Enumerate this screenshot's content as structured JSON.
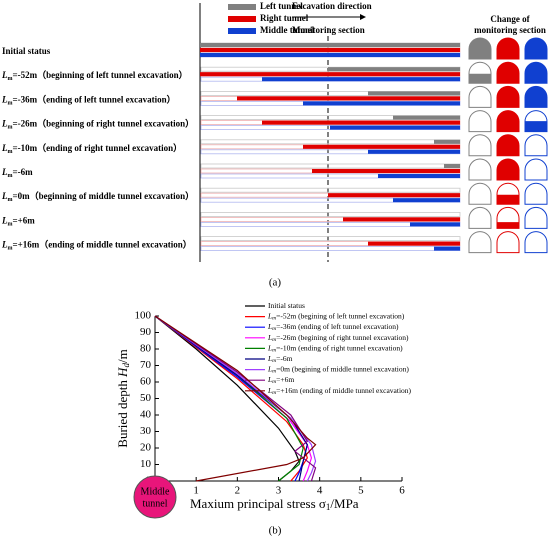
{
  "figure_a": {
    "legend": [
      "Left tunnel",
      "Right tunnel",
      "Middle tunnel"
    ],
    "direction_label": "Excavation direction",
    "section_label": "Monitoring section",
    "change_label": [
      "Change of",
      "monitoring section"
    ],
    "stages": [
      {
        "text": "Initial status"
      },
      {
        "symbol": "L",
        "subscript": "m",
        "text": "=-52m（beginning of left tunnel excavation）"
      },
      {
        "symbol": "L",
        "subscript": "m",
        "text": "=-36m（ending of left tunnel excavation）"
      },
      {
        "symbol": "L",
        "subscript": "m",
        "text": "=-26m（beginning of right tunnel excavation）"
      },
      {
        "symbol": "L",
        "subscript": "m",
        "text": "=-10m（ending of right tunnel excavation）"
      },
      {
        "symbol": "L",
        "subscript": "m",
        "text": "=-6m"
      },
      {
        "symbol": "L",
        "subscript": "m",
        "text": "=0m（beginning of middle tunnel excavation）"
      },
      {
        "symbol": "L",
        "subscript": "m",
        "text": "=+6m"
      },
      {
        "symbol": "L",
        "subscript": "m",
        "text": "=+16m（ending of middle tunnel excavation）"
      }
    ],
    "caption": "(a)"
  },
  "chart_data": {
    "type": "line",
    "y_title": {
      "prefix": "Buried depth ",
      "symbol": "H",
      "subscript": "d",
      "suffix": "/m"
    },
    "x_title": {
      "prefix": "Maxium principal stress σ",
      "subscript": "1",
      "suffix": "/MPa"
    },
    "xlim": [
      0,
      6
    ],
    "xticks": [
      0,
      1,
      2,
      3,
      4,
      5,
      6
    ],
    "ylim": [
      0,
      100
    ],
    "yticks": [
      0,
      10,
      20,
      30,
      40,
      50,
      60,
      70,
      80,
      90,
      100
    ],
    "marker_label": [
      "Middle",
      "tunnel"
    ],
    "series": [
      {
        "name": "Initial status",
        "color": "#000000",
        "x": [
          0,
          1,
          2,
          3,
          3.4,
          3.5,
          3.3,
          3.0
        ],
        "values": [
          100,
          80,
          58,
          32,
          18,
          12,
          6,
          0
        ]
      },
      {
        "name_prefix": "L",
        "name_subscript": "m",
        "name": "=-52m (begining of left tunnel excavation)",
        "color": "#ff0000",
        "x": [
          0,
          2,
          3.2,
          3.6,
          3.7,
          3.5,
          3.3
        ],
        "values": [
          100,
          62,
          36,
          22,
          14,
          6,
          0
        ]
      },
      {
        "name_prefix": "L",
        "name_subscript": "m",
        "name": "=-36m (ending of left tunnel excavation)",
        "color": "#0000ff",
        "x": [
          0,
          2,
          3.3,
          3.7,
          3.6,
          3.5,
          3.4
        ],
        "values": [
          100,
          63,
          36,
          22,
          12,
          5,
          0
        ]
      },
      {
        "name_prefix": "L",
        "name_subscript": "m",
        "name": "=-26m (begining of right tunnel excavation)",
        "color": "#ff00ff",
        "x": [
          0,
          2,
          3.3,
          3.7,
          3.8,
          3.7,
          3.6
        ],
        "values": [
          100,
          64,
          36,
          22,
          14,
          6,
          0
        ]
      },
      {
        "name_prefix": "L",
        "name_subscript": "m",
        "name": "=-10m (ending of right tunnel excavation)",
        "color": "#008000",
        "x": [
          0,
          2,
          3.2,
          3.6,
          3.5,
          3.2,
          3.0
        ],
        "values": [
          100,
          64,
          38,
          20,
          10,
          4,
          0
        ]
      },
      {
        "name_prefix": "L",
        "name_subscript": "m",
        "name": "=-6m",
        "color": "#000080",
        "x": [
          0,
          2,
          3.3,
          3.7,
          3.6,
          3.5
        ],
        "values": [
          100,
          64,
          38,
          22,
          12,
          0
        ]
      },
      {
        "name_prefix": "L",
        "name_subscript": "m",
        "name": "=0m (begining of middle tunnel excavation)",
        "color": "#a040ff",
        "x": [
          0,
          2,
          3.3,
          3.8,
          3.9,
          3.8,
          3.7
        ],
        "values": [
          100,
          65,
          38,
          22,
          12,
          5,
          0
        ]
      },
      {
        "name_prefix": "L",
        "name_subscript": "m",
        "name": "=+6m",
        "color": "#800080",
        "x": [
          0,
          2,
          3.3,
          3.7,
          3.4,
          3.9,
          3.8
        ],
        "values": [
          100,
          66,
          40,
          24,
          18,
          8,
          0
        ]
      },
      {
        "name_prefix": "L",
        "name_subscript": "m",
        "name": "=+16m (ending of middle tunnel excavation)",
        "color": "#800000",
        "x": [
          0,
          2,
          3.2,
          3.7,
          3.9,
          3.6,
          3.2,
          1
        ],
        "values": [
          100,
          67,
          40,
          26,
          22,
          14,
          10,
          0
        ]
      }
    ]
  },
  "caption_b": "(b)"
}
